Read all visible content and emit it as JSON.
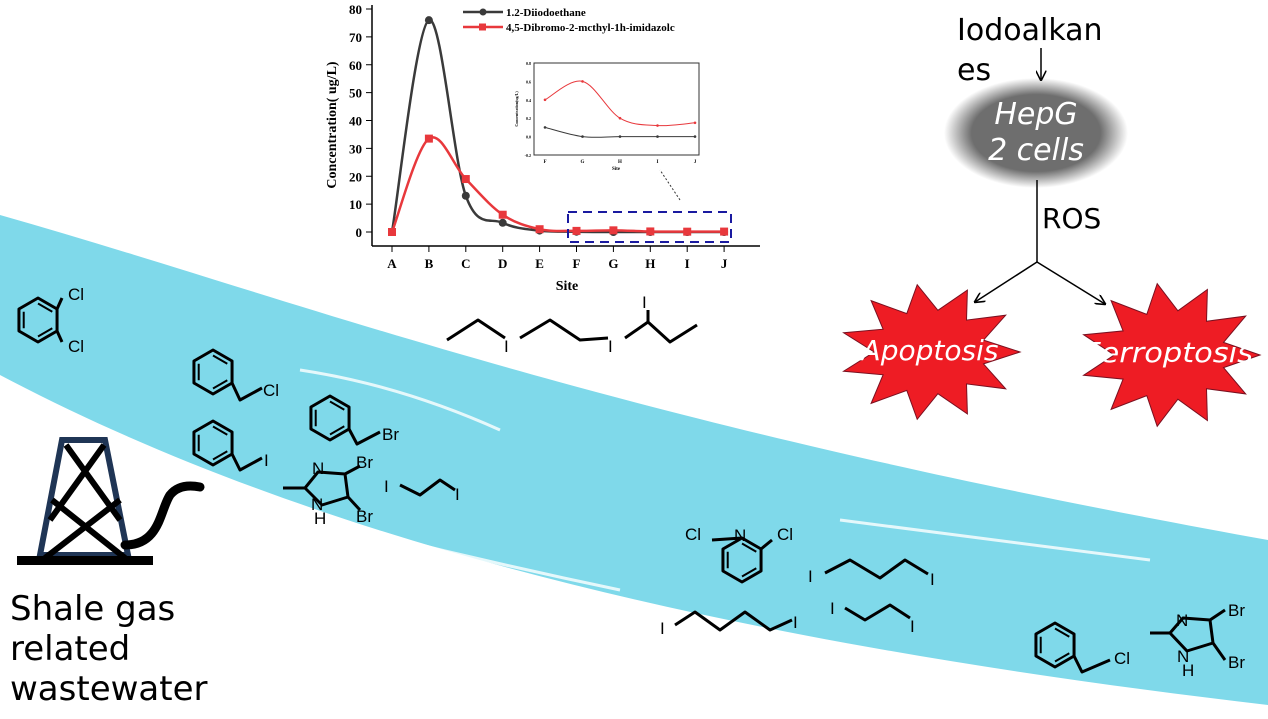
{
  "colors": {
    "river": "#7fd9ea",
    "series_black": "#3a3a3a",
    "series_red": "#e8383c",
    "burst": "#ee1c24",
    "cell": "#6e6e6e",
    "highlight_box": "#1a1aa0"
  },
  "chart_data": {
    "type": "line",
    "xlabel": "Site",
    "ylabel": "Concentration( ug/L)",
    "categories": [
      "A",
      "B",
      "C",
      "D",
      "E",
      "F",
      "G",
      "H",
      "I",
      "J"
    ],
    "ylim": [
      0,
      80
    ],
    "yticks": [
      "0",
      "10",
      "20",
      "30",
      "40",
      "50",
      "60",
      "70",
      "80"
    ],
    "legend": "top-right",
    "series": [
      {
        "name": "1.2-Diiodoethane",
        "color": "#3a3a3a",
        "marker": "circle",
        "values": [
          0,
          76,
          13,
          3.3,
          0.5,
          0.1,
          0,
          0,
          0,
          0
        ]
      },
      {
        "name": "4,5-Dibromo-2-mcthyl-1h-imidazolc",
        "color": "#e8383c",
        "marker": "square",
        "values": [
          0,
          33.5,
          19,
          6.2,
          1,
          0.4,
          0.6,
          0.2,
          0.12,
          0.15
        ]
      }
    ],
    "inset": {
      "xlabel": "Site",
      "ylabel": "Concentration(ug/L)",
      "categories": [
        "F",
        "G",
        "H",
        "I",
        "J"
      ],
      "ylim": [
        -0.2,
        0.8
      ],
      "yticks": [
        "-0.2",
        "0.0",
        "0.2",
        "0.4",
        "0.6",
        "0.8"
      ],
      "series": [
        {
          "values": [
            0.1,
            0,
            0,
            0,
            0
          ]
        },
        {
          "values": [
            0.4,
            0.6,
            0.2,
            0.12,
            0.15
          ]
        }
      ]
    }
  },
  "pathway": {
    "input": "Iodoalkan",
    "input_cont": "es",
    "cell_line1": "HepG",
    "cell_line2": "2 cells",
    "mediator": "ROS",
    "outcome_left": "Apoptosis",
    "outcome_right": "Ferroptosis"
  },
  "source_label": [
    "Shale gas",
    "related",
    "wastewater"
  ],
  "atoms": [
    "Cl",
    "Cl",
    "Cl",
    "Br",
    "I",
    "N",
    "H",
    "Br",
    "Br",
    "I",
    "I",
    "I",
    "I",
    "I",
    "Cl",
    "N",
    "Cl",
    "I",
    "I",
    "I",
    "I",
    "I",
    "I",
    "Cl",
    "N",
    "H",
    "Br",
    "Br"
  ]
}
